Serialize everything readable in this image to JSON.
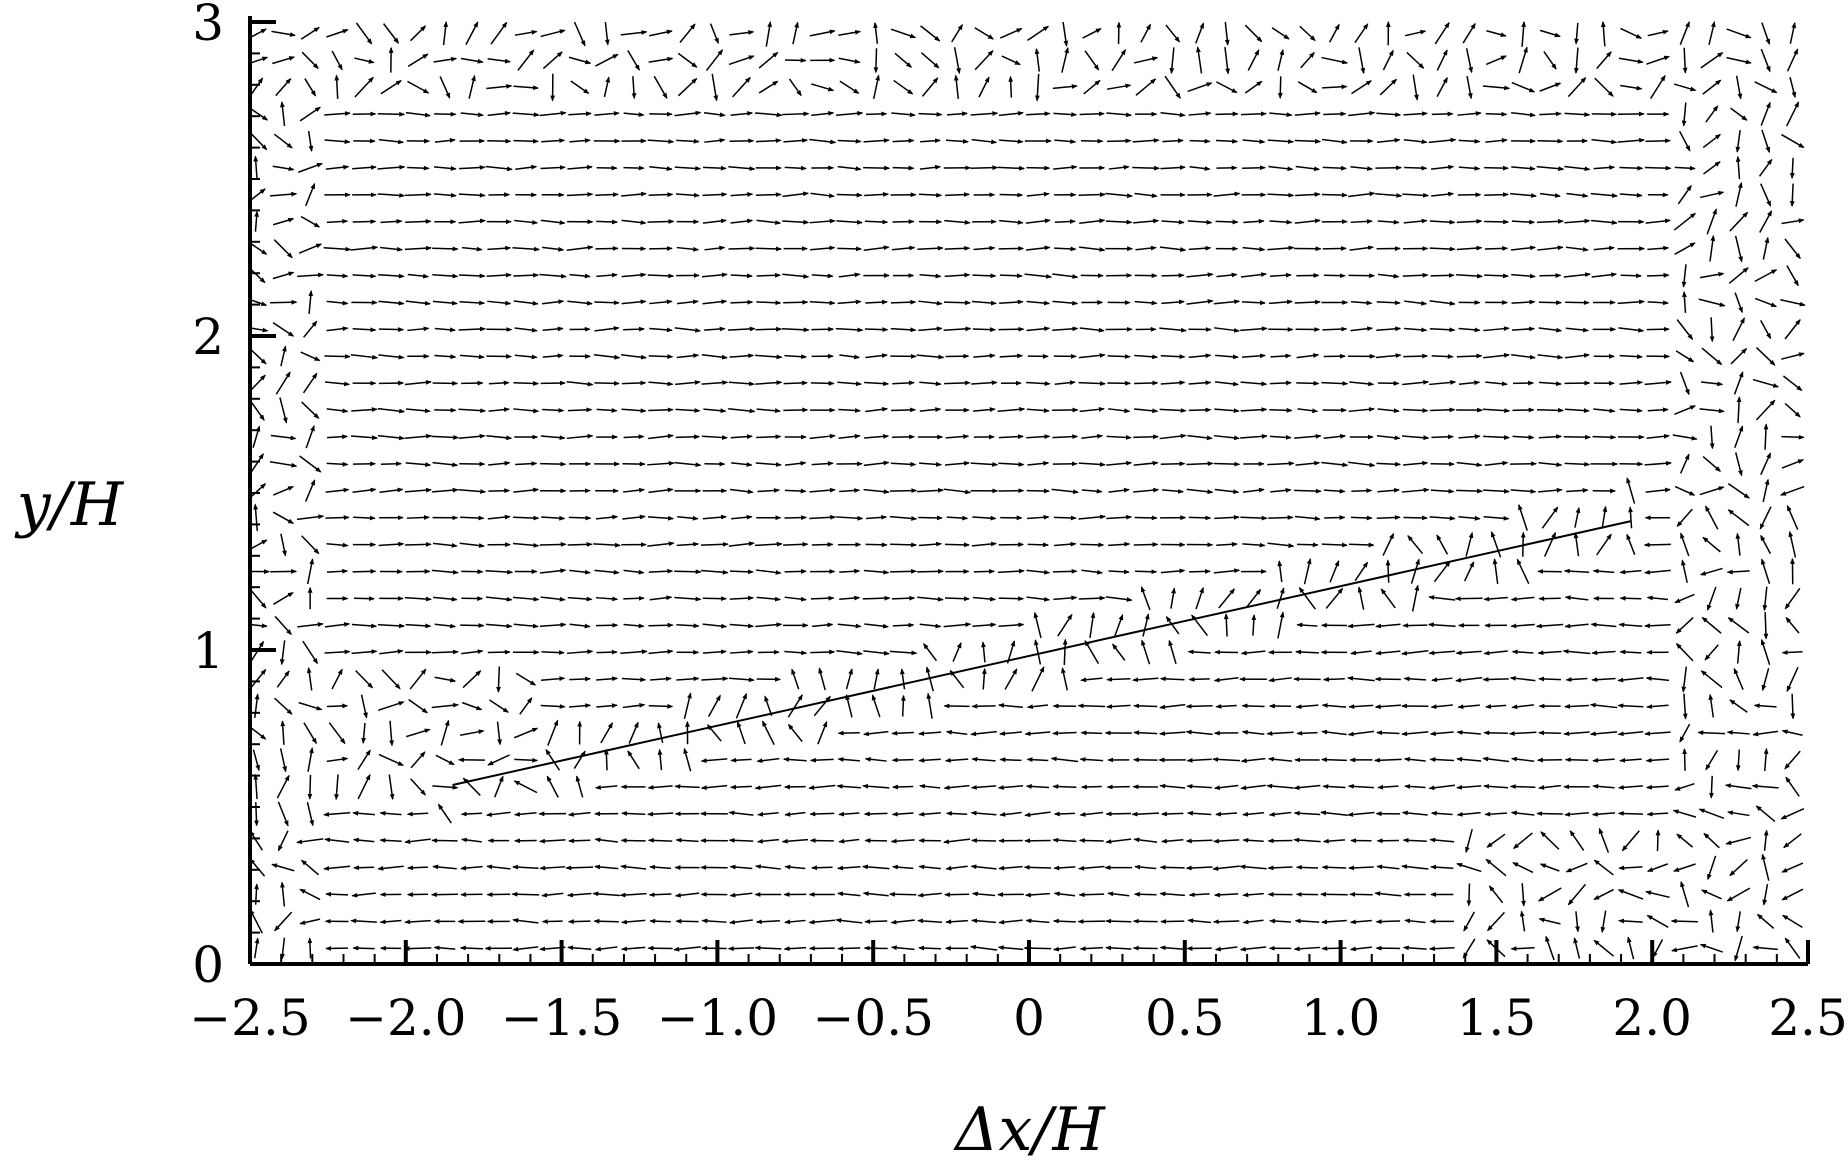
{
  "chart_data": {
    "type": "vector-field",
    "xlabel": "Δx/H",
    "ylabel": "y/H",
    "xlim": [
      -2.5,
      2.5
    ],
    "ylim": [
      0,
      3
    ],
    "xticks": [
      -2.5,
      -2.0,
      -1.5,
      -1.0,
      -0.5,
      0,
      0.5,
      1.0,
      1.5,
      2.0,
      2.5
    ],
    "xtick_labels": [
      "−2.5",
      "−2.0",
      "−1.5",
      "−1.0",
      "−0.5",
      "0",
      "0.5",
      "1.0",
      "1.5",
      "2.0",
      "2.5"
    ],
    "yticks": [
      0,
      1,
      2,
      3
    ],
    "ytick_labels": [
      "0",
      "1",
      "2",
      "3"
    ],
    "minor_x_step": 0.1,
    "minor_y_step": 0.1,
    "grid": false,
    "reference_line": {
      "x": [
        -1.85,
        1.93
      ],
      "y": [
        0.57,
        1.41
      ]
    },
    "vector_field": {
      "x_start": -2.48,
      "x_step": 0.0865,
      "nx": 58,
      "y_start": 0.05,
      "y_step": 0.0857,
      "ny": 35,
      "arrow_length": 0.075,
      "note": "vector directions approximated per region"
    }
  }
}
